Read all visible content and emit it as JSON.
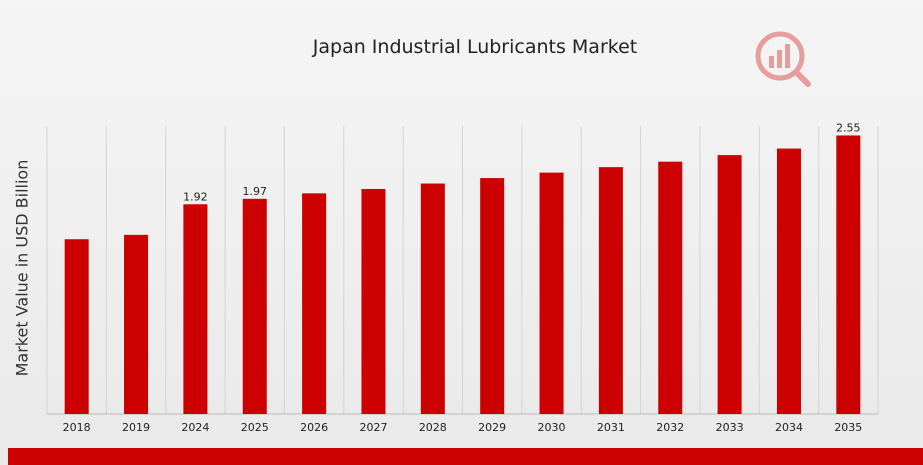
{
  "chart_data": {
    "type": "bar",
    "title": "Japan Industrial Lubricants Market",
    "xlabel": "",
    "ylabel": "Market Value in USD Billion",
    "categories": [
      "2018",
      "2019",
      "2024",
      "2025",
      "2026",
      "2027",
      "2028",
      "2029",
      "2030",
      "2031",
      "2032",
      "2033",
      "2034",
      "2035"
    ],
    "values": [
      1.6,
      1.64,
      1.92,
      1.97,
      2.02,
      2.06,
      2.11,
      2.16,
      2.21,
      2.26,
      2.31,
      2.37,
      2.43,
      2.55
    ],
    "data_labels": [
      null,
      null,
      "1.92",
      "1.97",
      null,
      null,
      null,
      null,
      null,
      null,
      null,
      null,
      null,
      "2.55"
    ],
    "ylim": [
      0,
      2.6
    ],
    "grid": "vertical",
    "bar_color": "#cc0000",
    "legend": "none"
  },
  "brand": {
    "accent_color": "#cc0000",
    "logo_icon": "analytics-logo-icon"
  }
}
